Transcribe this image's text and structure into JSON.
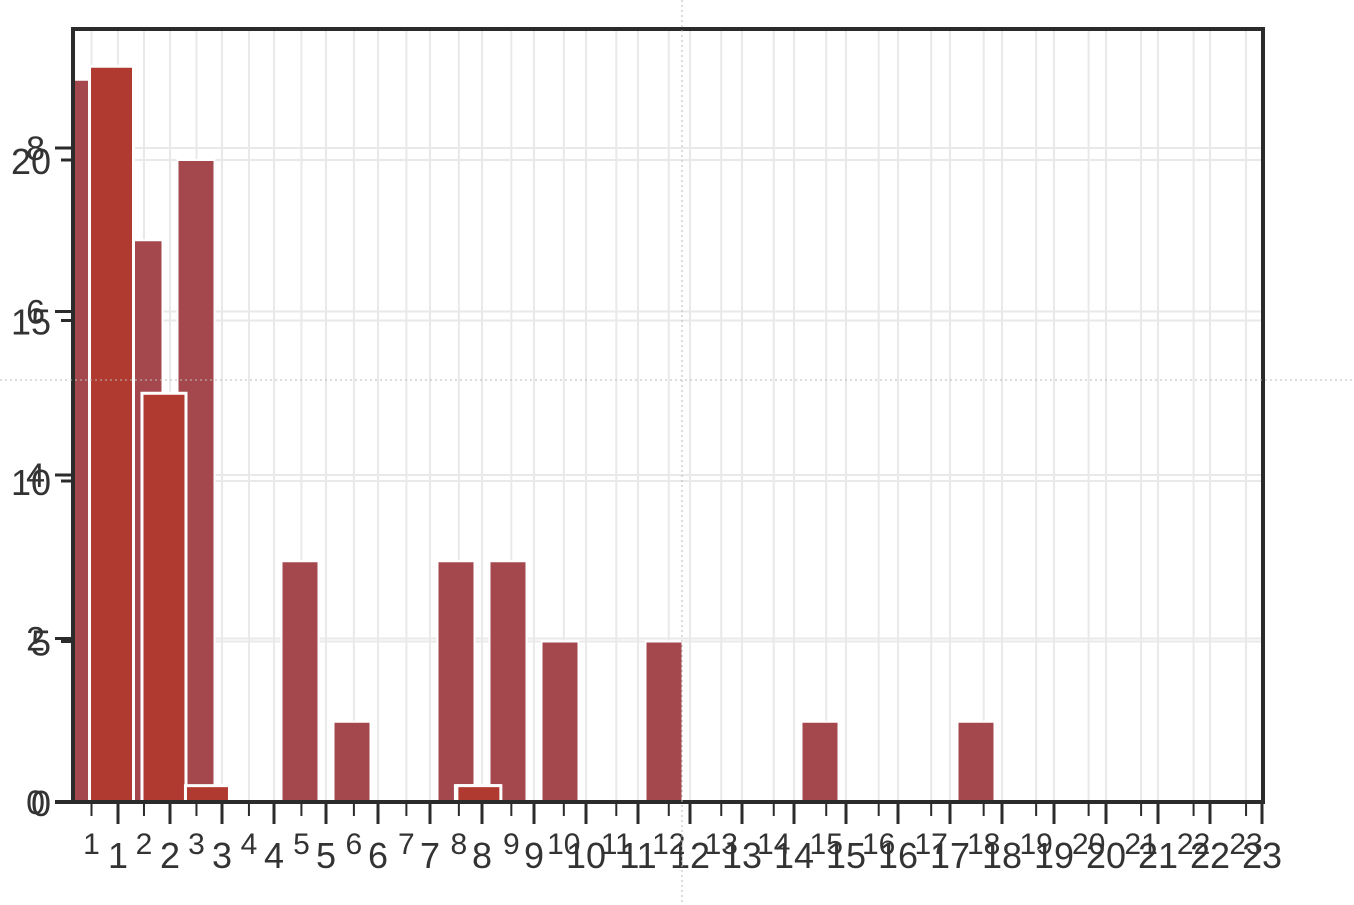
{
  "chart_data": {
    "type": "bar",
    "title": "",
    "xlabel": "",
    "ylabel": "",
    "grid": true,
    "panels": [
      {
        "name": "",
        "x": [
          1,
          2,
          3,
          5,
          8
        ],
        "values": [
          9,
          5,
          0.2,
          0.2,
          0.2
        ],
        "color": "#b13a30",
        "outline": "#ffffff",
        "y_axis": "left-inner",
        "y_ticks": [
          0,
          2,
          4,
          6,
          8
        ],
        "y_tick_labels": [
          "0",
          "2",
          "4",
          "6",
          "8"
        ],
        "ylim": [
          0,
          9.5
        ],
        "x_ticks": [
          1,
          2,
          3,
          4,
          5,
          6,
          7,
          8,
          9,
          10,
          11,
          12,
          13,
          14,
          15,
          16,
          17,
          18,
          19,
          20,
          21,
          22,
          23
        ],
        "x_tick_labels": [
          "1",
          "2",
          "3",
          "4",
          "5",
          "6",
          "7",
          "8",
          "9",
          "10",
          "11",
          "12",
          "13",
          "14",
          "15",
          "16",
          "17",
          "18",
          "19",
          "20",
          "21",
          "22",
          "23"
        ]
      },
      {
        "name": "",
        "x": [
          1,
          2,
          3,
          4,
          5,
          6,
          7,
          8,
          9,
          10,
          11,
          12,
          13,
          14,
          15,
          16,
          17,
          18,
          19,
          20,
          21,
          22,
          23
        ],
        "values": [
          22.5,
          17.5,
          20,
          0,
          7.5,
          2.5,
          0,
          7.5,
          7.5,
          5,
          0,
          5,
          0,
          0,
          2.5,
          0,
          0,
          2.5,
          0,
          0,
          0,
          0,
          0
        ],
        "color": "#a4484e",
        "outline": "#ffffff",
        "y_axis": "left-outer",
        "y_ticks": [
          0,
          5,
          10,
          15,
          20
        ],
        "y_tick_labels": [
          "0",
          "5",
          "10",
          "15",
          "20"
        ],
        "ylim": [
          0,
          24.5
        ],
        "x_ticks": [
          1,
          2,
          3,
          4,
          5,
          6,
          7,
          8,
          9,
          10,
          11,
          12,
          13,
          14,
          15,
          16,
          17,
          18,
          19,
          20,
          21,
          22,
          23
        ],
        "x_tick_labels": [
          "1",
          "2",
          "3",
          "4",
          "5",
          "6",
          "7",
          "8",
          "9",
          "10",
          "11",
          "12",
          "13",
          "14",
          "15",
          "16",
          "17",
          "18",
          "19",
          "20",
          "21",
          "22",
          "23"
        ]
      }
    ],
    "colors": {
      "axis": "#2b2b2b",
      "grid": "#e9e9e9",
      "text": "#333333",
      "bar_primary": "#b13a30",
      "bar_secondary": "#a4484e"
    }
  }
}
